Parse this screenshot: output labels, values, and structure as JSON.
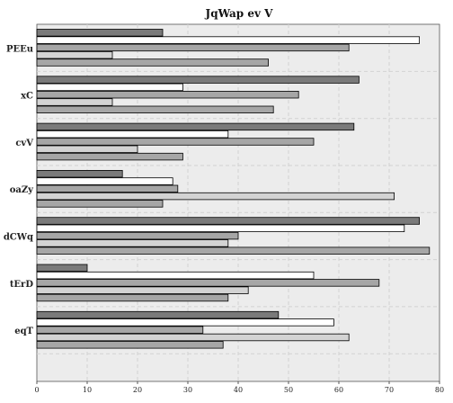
{
  "chart_data": {
    "type": "bar",
    "orientation": "horizontal",
    "title": "JqWap ev V",
    "xlabel": "",
    "ylabel": "",
    "xlim": [
      0,
      80
    ],
    "xticks": [
      0,
      10,
      20,
      30,
      40,
      50,
      60,
      70,
      80
    ],
    "grid": true,
    "legend": "none",
    "plot_background": "#ececec",
    "categories": [
      "PEEu",
      "xC",
      "cvV",
      "oaZy",
      "dCWq",
      "tErD",
      "eqT"
    ],
    "series": [
      {
        "color": "#7a7a7a",
        "values": [
          25,
          64,
          63,
          17,
          76,
          10,
          48
        ]
      },
      {
        "color": "#ffffff",
        "values": [
          76,
          29,
          38,
          27,
          73,
          55,
          59
        ]
      },
      {
        "color": "#a6a6a6",
        "values": [
          62,
          52,
          55,
          28,
          40,
          68,
          33
        ]
      },
      {
        "color": "#d3d3d3",
        "values": [
          15,
          15,
          20,
          71,
          38,
          42,
          62
        ]
      },
      {
        "color": "#a6a6a6",
        "values": [
          46,
          47,
          29,
          25,
          78,
          38,
          37
        ]
      }
    ]
  }
}
